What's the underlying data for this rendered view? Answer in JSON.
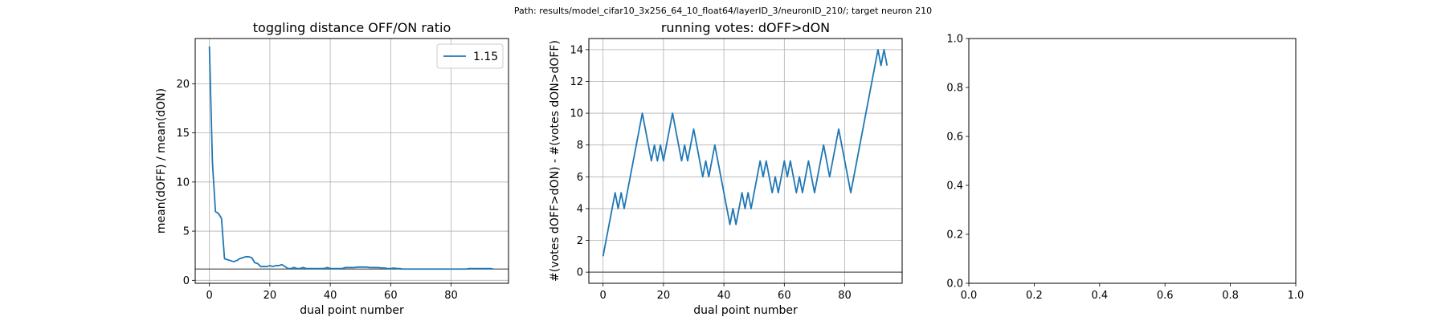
{
  "suptitle": "Path: results/model_cifar10_3x256_64_10_float64/layerID_3/neuronID_210/; target neuron 210",
  "chart_data": [
    {
      "type": "line",
      "title": "toggling distance OFF/ON ratio",
      "xlabel": "dual point number",
      "ylabel": "mean(dOFF) / mean(dON)",
      "xlim": [
        -4.7,
        99
      ],
      "ylim": [
        -0.3,
        24.6
      ],
      "xticks": [
        0,
        20,
        40,
        60,
        80
      ],
      "yticks": [
        0,
        5,
        10,
        15,
        20
      ],
      "grid": true,
      "hline": 1.15,
      "legend": {
        "position": "top-right",
        "entries": [
          "1.15"
        ]
      },
      "series": [
        {
          "name": "1.15",
          "color": "#1f77b4",
          "x": [
            0,
            1,
            2,
            3,
            4,
            5,
            6,
            7,
            8,
            9,
            10,
            11,
            12,
            13,
            14,
            15,
            16,
            17,
            18,
            19,
            20,
            21,
            22,
            23,
            24,
            25,
            26,
            27,
            28,
            29,
            30,
            31,
            32,
            33,
            34,
            35,
            36,
            37,
            38,
            39,
            40,
            41,
            42,
            43,
            44,
            45,
            46,
            47,
            48,
            49,
            50,
            51,
            52,
            53,
            54,
            55,
            56,
            57,
            58,
            59,
            60,
            61,
            62,
            63,
            64,
            65,
            66,
            67,
            68,
            69,
            70,
            71,
            72,
            73,
            74,
            75,
            76,
            77,
            78,
            79,
            80,
            81,
            82,
            83,
            84,
            85,
            86,
            87,
            88,
            89,
            90,
            91,
            92,
            93,
            94
          ],
          "values": [
            23.8,
            12.0,
            7.0,
            6.8,
            6.3,
            2.2,
            2.1,
            2.0,
            1.9,
            2.0,
            2.2,
            2.3,
            2.4,
            2.4,
            2.3,
            1.8,
            1.7,
            1.4,
            1.4,
            1.4,
            1.5,
            1.4,
            1.5,
            1.5,
            1.6,
            1.4,
            1.2,
            1.2,
            1.3,
            1.2,
            1.2,
            1.3,
            1.2,
            1.2,
            1.2,
            1.2,
            1.2,
            1.2,
            1.2,
            1.3,
            1.2,
            1.2,
            1.2,
            1.2,
            1.2,
            1.3,
            1.3,
            1.3,
            1.3,
            1.35,
            1.35,
            1.35,
            1.35,
            1.3,
            1.3,
            1.3,
            1.3,
            1.25,
            1.25,
            1.2,
            1.2,
            1.25,
            1.2,
            1.2,
            1.15,
            1.15,
            1.15,
            1.15,
            1.15,
            1.15,
            1.15,
            1.15,
            1.15,
            1.15,
            1.15,
            1.15,
            1.15,
            1.15,
            1.15,
            1.15,
            1.15,
            1.15,
            1.15,
            1.15,
            1.15,
            1.15,
            1.2,
            1.2,
            1.2,
            1.2,
            1.2,
            1.2,
            1.2,
            1.2,
            1.15
          ]
        }
      ]
    },
    {
      "type": "line",
      "title": "running votes: dOFF>dON",
      "xlabel": "dual point number",
      "ylabel": "#(votes dOFF>dON) - #(votes dON>dOFF)",
      "xlim": [
        -4.7,
        99
      ],
      "ylim": [
        -0.7,
        14.7
      ],
      "xticks": [
        0,
        20,
        40,
        60,
        80
      ],
      "yticks": [
        0,
        2,
        4,
        6,
        8,
        10,
        12,
        14
      ],
      "grid": true,
      "hline": 0,
      "series": [
        {
          "color": "#1f77b4",
          "x": [
            0,
            1,
            2,
            3,
            4,
            5,
            6,
            7,
            8,
            9,
            10,
            11,
            12,
            13,
            14,
            15,
            16,
            17,
            18,
            19,
            20,
            21,
            22,
            23,
            24,
            25,
            26,
            27,
            28,
            29,
            30,
            31,
            32,
            33,
            34,
            35,
            36,
            37,
            38,
            39,
            40,
            41,
            42,
            43,
            44,
            45,
            46,
            47,
            48,
            49,
            50,
            51,
            52,
            53,
            54,
            55,
            56,
            57,
            58,
            59,
            60,
            61,
            62,
            63,
            64,
            65,
            66,
            67,
            68,
            69,
            70,
            71,
            72,
            73,
            74,
            75,
            76,
            77,
            78,
            79,
            80,
            81,
            82,
            83,
            84,
            85,
            86,
            87,
            88,
            89,
            90,
            91,
            92,
            93,
            94
          ],
          "values": [
            1,
            2,
            3,
            4,
            5,
            4,
            5,
            4,
            5,
            6,
            7,
            8,
            9,
            10,
            9,
            8,
            7,
            8,
            7,
            8,
            7,
            8,
            9,
            10,
            9,
            8,
            7,
            8,
            7,
            8,
            9,
            8,
            7,
            6,
            7,
            6,
            7,
            8,
            7,
            6,
            5,
            4,
            3,
            4,
            3,
            4,
            5,
            4,
            5,
            4,
            5,
            6,
            7,
            6,
            7,
            6,
            5,
            6,
            5,
            6,
            7,
            6,
            7,
            6,
            5,
            6,
            5,
            6,
            7,
            6,
            5,
            6,
            7,
            8,
            7,
            6,
            7,
            8,
            9,
            8,
            7,
            6,
            5,
            6,
            7,
            8,
            9,
            10,
            11,
            12,
            13,
            14,
            13,
            14,
            13
          ]
        }
      ]
    },
    {
      "type": "line",
      "title": "",
      "xlabel": "",
      "ylabel": "",
      "xlim": [
        0,
        1
      ],
      "ylim": [
        0,
        1
      ],
      "xticks": [
        "0.0",
        "0.2",
        "0.4",
        "0.6",
        "0.8",
        "1.0"
      ],
      "yticks": [
        "0.0",
        "0.2",
        "0.4",
        "0.6",
        "0.8",
        "1.0"
      ],
      "grid": false,
      "series": []
    }
  ]
}
